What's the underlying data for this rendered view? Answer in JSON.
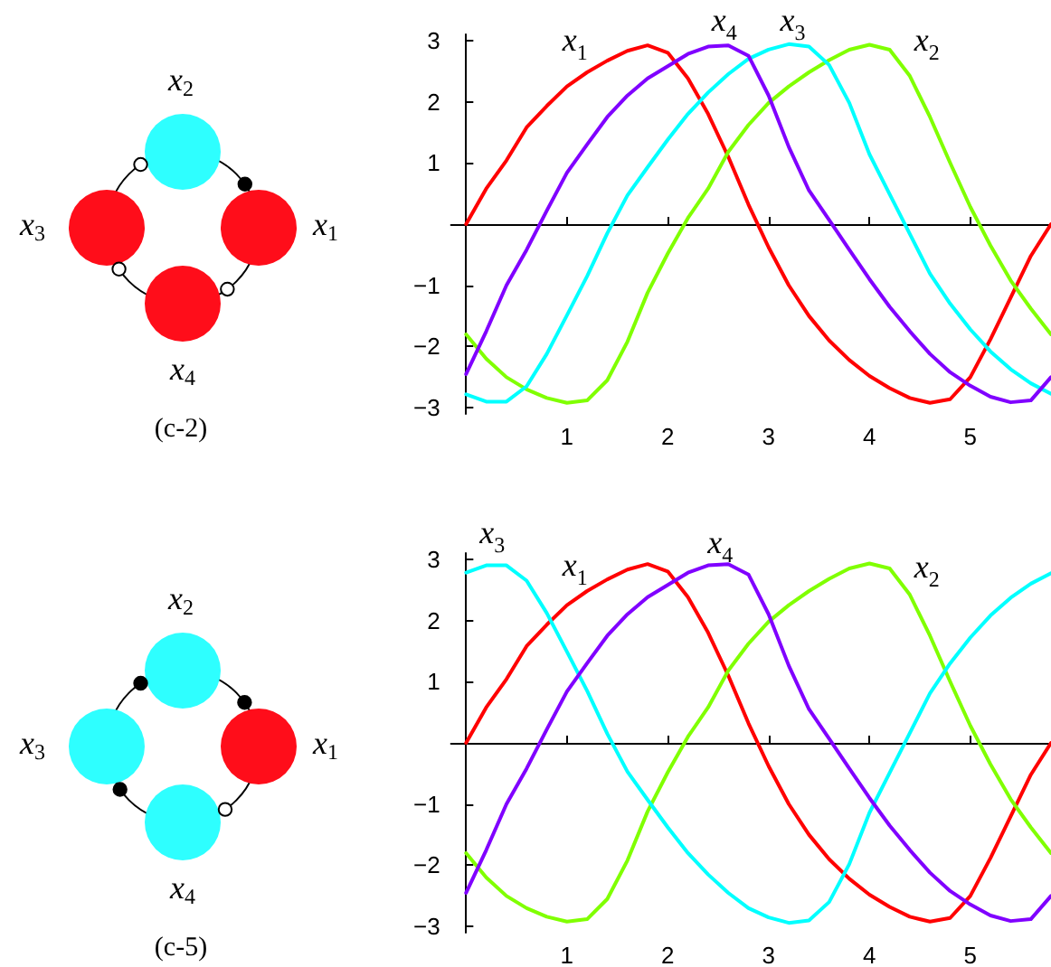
{
  "chart_data": [
    {
      "type": "line",
      "annotations": [
        "(c-2)"
      ],
      "x": [
        0,
        0.2,
        0.4,
        0.6,
        0.8,
        1,
        1.2,
        1.4,
        1.6,
        1.8,
        2,
        2.2,
        2.4,
        2.6,
        2.8,
        3,
        3.2,
        3.4,
        3.6,
        3.8,
        4,
        4.2,
        4.4,
        4.6,
        4.8,
        5,
        5.2,
        5.4,
        5.6,
        5.8
      ],
      "series": [
        {
          "name": "x$_{1}$",
          "color": "#ff0000",
          "values": [
            0,
            0.58,
            1.04,
            1.58,
            1.93,
            2.25,
            2.48,
            2.67,
            2.83,
            2.92,
            2.8,
            2.38,
            1.8,
            1.1,
            0.32,
            -0.38,
            -1.0,
            -1.5,
            -1.9,
            -2.22,
            -2.48,
            -2.68,
            -2.84,
            -2.92,
            -2.86,
            -2.5,
            -1.88,
            -1.2,
            -0.52,
            0
          ]
        },
        {
          "name": "x$_{2}$",
          "color": "#80ff00",
          "values": [
            -1.8,
            -2.2,
            -2.5,
            -2.7,
            -2.84,
            -2.92,
            -2.88,
            -2.55,
            -1.92,
            -1.12,
            -0.48,
            0.1,
            0.58,
            1.18,
            1.62,
            1.98,
            2.25,
            2.48,
            2.68,
            2.85,
            2.93,
            2.85,
            2.42,
            1.75,
            1.0,
            0.28,
            -0.35,
            -0.92,
            -1.38,
            -1.8
          ]
        },
        {
          "name": "x$_{3}$",
          "color": "#00ffff",
          "values": [
            -2.78,
            -2.9,
            -2.9,
            -2.65,
            -2.12,
            -1.49,
            -0.85,
            -0.15,
            0.47,
            0.93,
            1.38,
            1.8,
            2.15,
            2.45,
            2.7,
            2.85,
            2.94,
            2.9,
            2.6,
            1.98,
            1.14,
            0.49,
            -0.16,
            -0.81,
            -1.3,
            -1.72,
            -2.08,
            -2.37,
            -2.6,
            -2.77
          ]
        },
        {
          "name": "x$_{4}$",
          "color": "#8000ff",
          "values": [
            -2.45,
            -1.75,
            -1.0,
            -0.42,
            0.22,
            0.84,
            1.3,
            1.75,
            2.1,
            2.38,
            2.58,
            2.78,
            2.9,
            2.92,
            2.75,
            2.1,
            1.26,
            0.55,
            0.07,
            -0.42,
            -0.9,
            -1.35,
            -1.75,
            -2.12,
            -2.42,
            -2.64,
            -2.82,
            -2.91,
            -2.88,
            -2.5
          ]
        }
      ],
      "xlim": [
        -0.15,
        5.8
      ],
      "ylim": [
        -3.1,
        3.1
      ],
      "xticks": [
        1,
        2,
        3,
        4,
        5
      ],
      "yticks": [
        {
          "value": -3,
          "label": "−3"
        },
        {
          "value": -2,
          "label": "−2"
        },
        {
          "value": -1,
          "label": "−1"
        },
        1,
        2,
        3
      ],
      "marker": "none",
      "line_style": "solid"
    },
    {
      "type": "line",
      "annotations": [
        "(c-5)"
      ],
      "x": [
        0,
        0.2,
        0.4,
        0.6,
        0.8,
        1,
        1.2,
        1.4,
        1.6,
        1.8,
        2,
        2.2,
        2.4,
        2.6,
        2.8,
        3,
        3.2,
        3.4,
        3.6,
        3.8,
        4,
        4.2,
        4.4,
        4.6,
        4.8,
        5,
        5.2,
        5.4,
        5.6,
        5.8
      ],
      "series": [
        {
          "name": "x$_{1}$",
          "color": "#ff0000",
          "values": [
            0,
            0.58,
            1.04,
            1.58,
            1.93,
            2.25,
            2.48,
            2.67,
            2.83,
            2.92,
            2.8,
            2.38,
            1.8,
            1.1,
            0.32,
            -0.38,
            -1.0,
            -1.5,
            -1.9,
            -2.22,
            -2.48,
            -2.68,
            -2.84,
            -2.92,
            -2.86,
            -2.5,
            -1.88,
            -1.2,
            -0.52,
            0
          ]
        },
        {
          "name": "x$_{2}$",
          "color": "#80ff00",
          "values": [
            -1.8,
            -2.2,
            -2.5,
            -2.7,
            -2.84,
            -2.92,
            -2.88,
            -2.55,
            -1.92,
            -1.12,
            -0.48,
            0.1,
            0.58,
            1.18,
            1.62,
            1.98,
            2.25,
            2.48,
            2.68,
            2.85,
            2.93,
            2.85,
            2.42,
            1.75,
            1.0,
            0.28,
            -0.35,
            -0.92,
            -1.38,
            -1.8
          ]
        },
        {
          "name": "x$_{3}$",
          "color": "#00ffff",
          "values": [
            2.78,
            2.9,
            2.9,
            2.65,
            2.12,
            1.49,
            0.85,
            0.15,
            -0.47,
            -0.93,
            -1.38,
            -1.8,
            -2.15,
            -2.45,
            -2.7,
            -2.85,
            -2.94,
            -2.9,
            -2.6,
            -1.98,
            -1.14,
            -0.49,
            0.16,
            0.81,
            1.3,
            1.72,
            2.08,
            2.37,
            2.6,
            2.77
          ]
        },
        {
          "name": "x$_{4}$",
          "color": "#8000ff",
          "values": [
            -2.45,
            -1.75,
            -1.0,
            -0.42,
            0.22,
            0.84,
            1.3,
            1.75,
            2.1,
            2.38,
            2.58,
            2.78,
            2.9,
            2.92,
            2.75,
            2.1,
            1.26,
            0.55,
            0.07,
            -0.42,
            -0.9,
            -1.35,
            -1.75,
            -2.12,
            -2.42,
            -2.64,
            -2.82,
            -2.91,
            -2.88,
            -2.5
          ]
        }
      ],
      "xlim": [
        -0.15,
        5.8
      ],
      "ylim": [
        -3.1,
        3.1
      ],
      "xticks": [
        1,
        2,
        3,
        4,
        5
      ],
      "yticks": [
        {
          "value": -3,
          "label": "−3"
        },
        {
          "value": -2,
          "label": "−2"
        },
        {
          "value": -1,
          "label": "−1"
        },
        1,
        2,
        3
      ],
      "marker": "none",
      "line_style": "solid"
    }
  ]
}
